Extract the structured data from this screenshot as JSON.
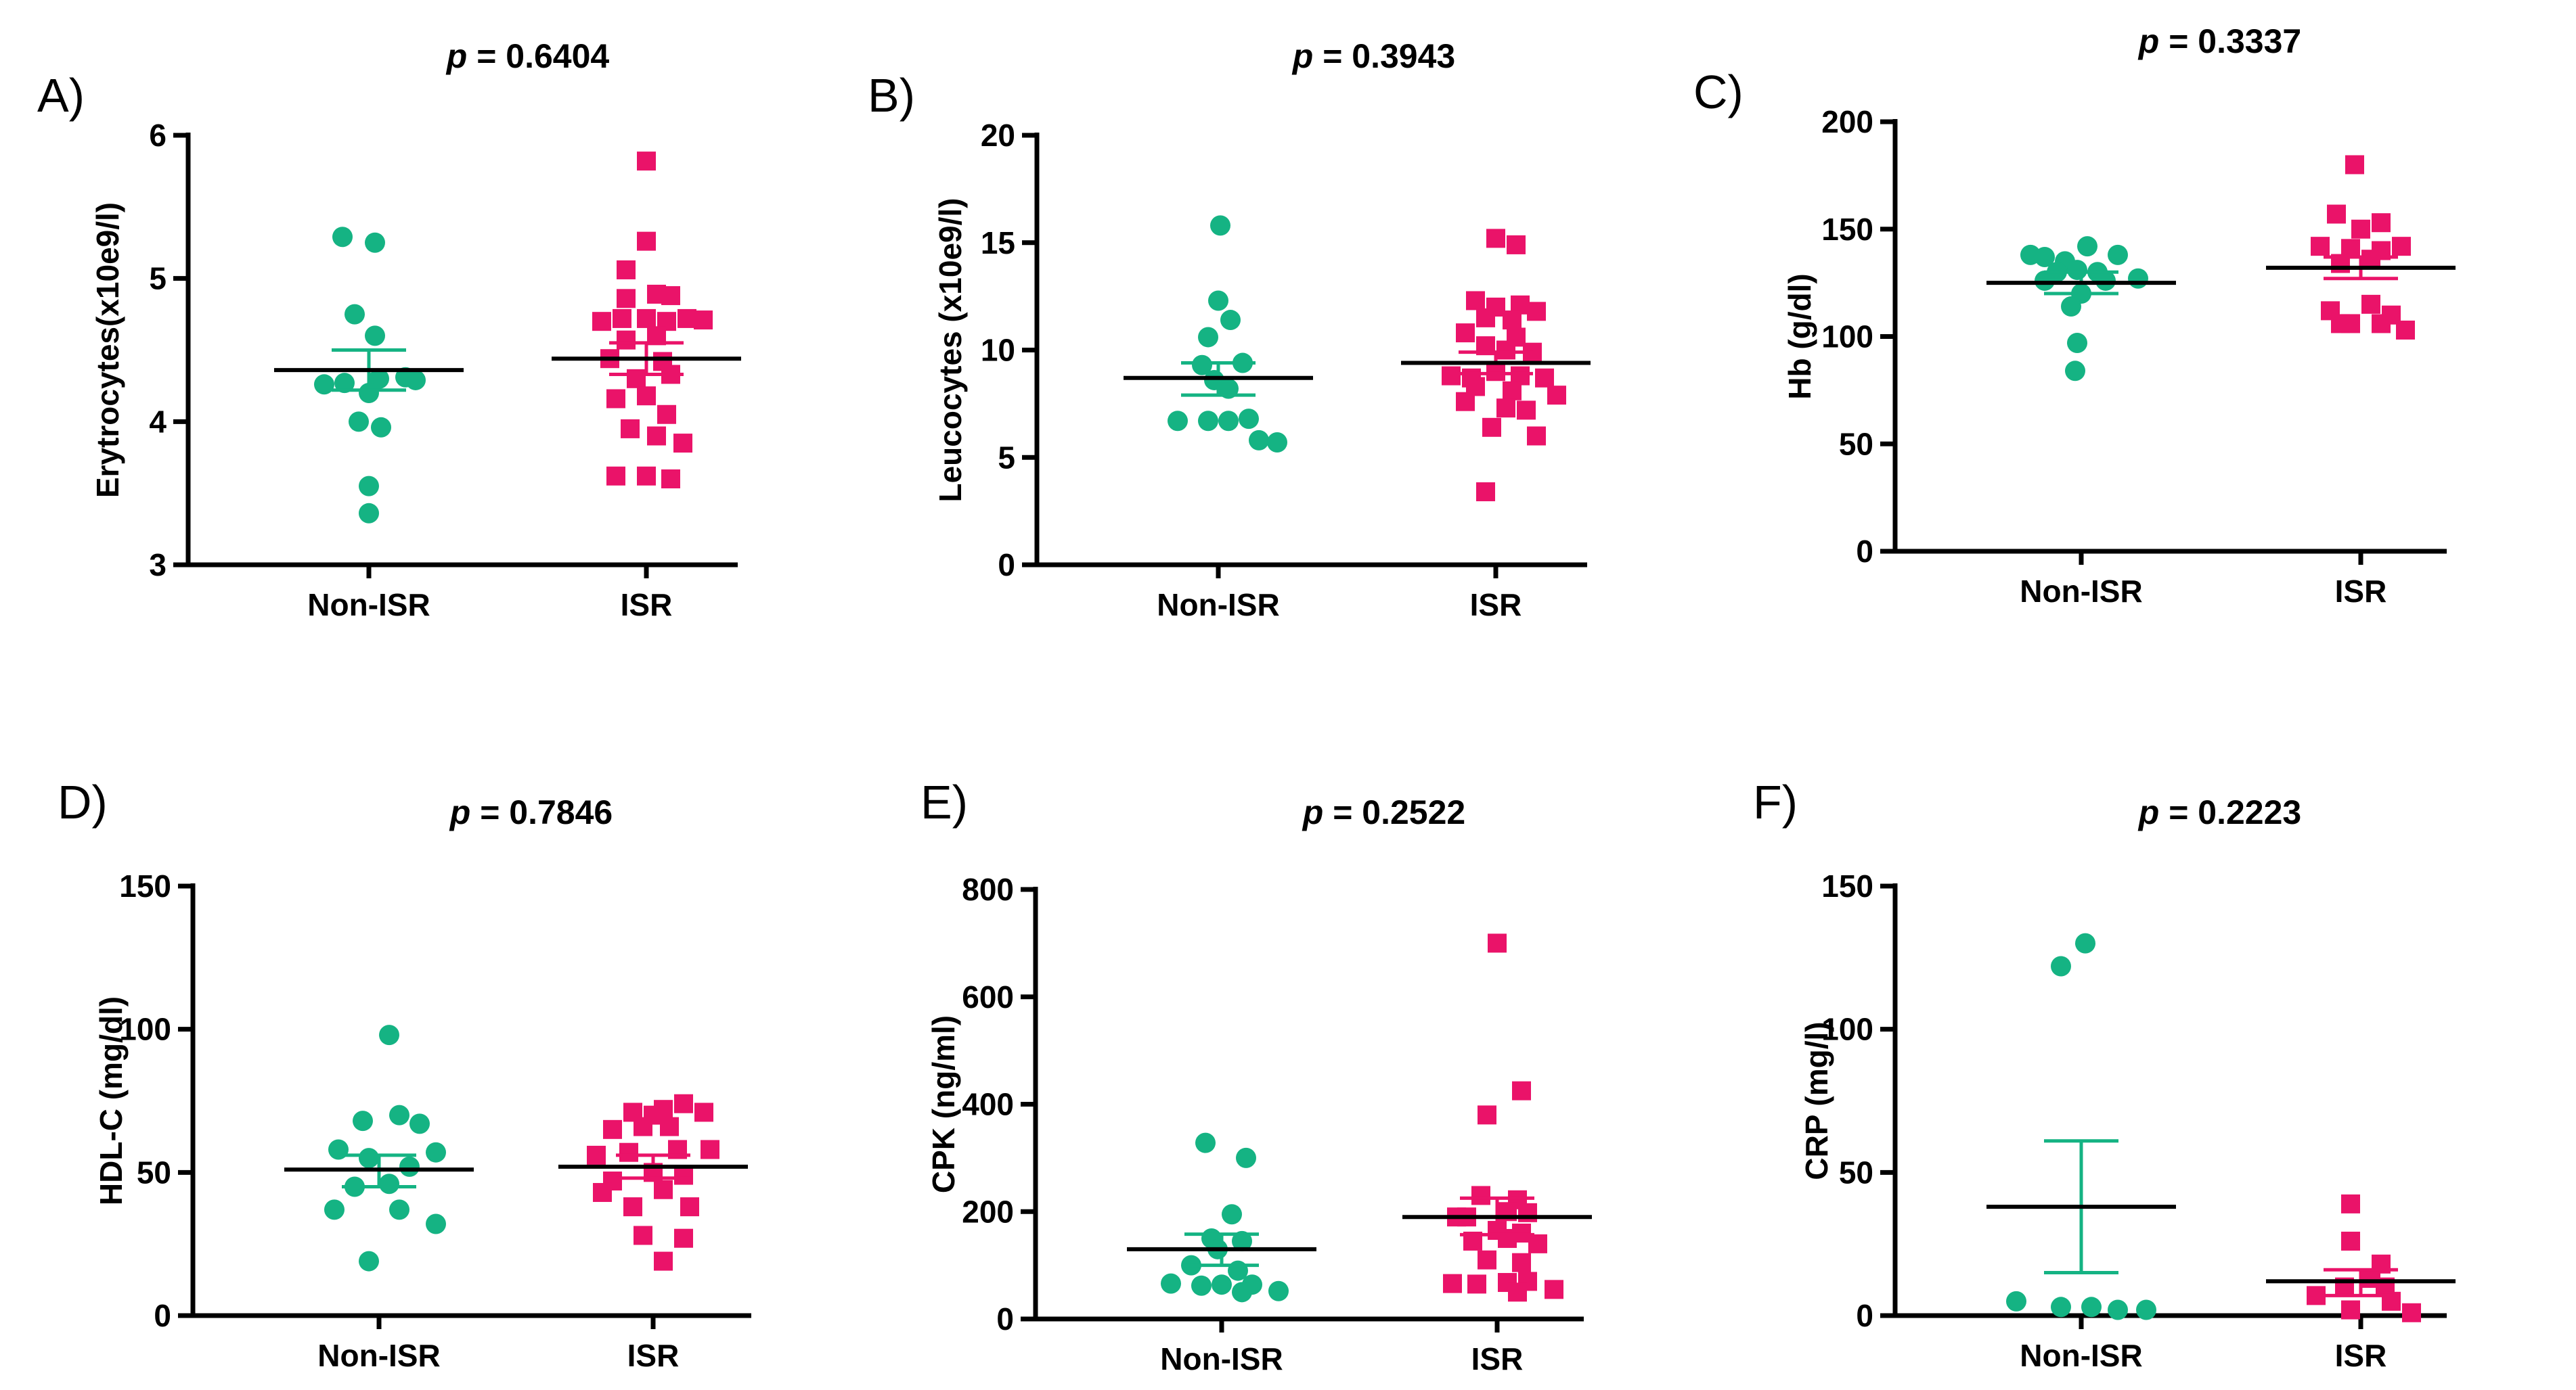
{
  "colors": {
    "non_isr": "#15b383",
    "isr": "#ea1369",
    "axis": "#000000"
  },
  "chart_data": [
    {
      "panel": "A)",
      "type": "scatter",
      "p_label": "p",
      "p_text": " = 0.6404",
      "ylabel": "Erytrocytes(x10e9/l)",
      "ylim": [
        3,
        6
      ],
      "yticks": [
        3,
        4,
        5,
        6
      ],
      "categories": [
        "Non-ISR",
        "ISR"
      ],
      "series": [
        {
          "name": "Non-ISR",
          "marker": "circle",
          "mean": 4.36,
          "sem_low": 4.22,
          "sem_high": 4.5,
          "points": [
            [
              -0.13,
              5.29
            ],
            [
              0.03,
              5.25
            ],
            [
              -0.07,
              4.75
            ],
            [
              0.03,
              4.6
            ],
            [
              -0.22,
              4.26
            ],
            [
              -0.12,
              4.27
            ],
            [
              0.05,
              4.3
            ],
            [
              0.18,
              4.31
            ],
            [
              0.23,
              4.29
            ],
            [
              0,
              4.2
            ],
            [
              -0.05,
              4.0
            ],
            [
              0.06,
              3.96
            ],
            [
              0.0,
              3.55
            ],
            [
              0.0,
              3.36
            ]
          ]
        },
        {
          "name": "ISR",
          "marker": "square",
          "mean": 4.44,
          "sem_low": 4.33,
          "sem_high": 4.55,
          "points": [
            [
              0,
              5.82
            ],
            [
              0,
              5.26
            ],
            [
              -0.1,
              5.06
            ],
            [
              -0.1,
              4.86
            ],
            [
              0.05,
              4.89
            ],
            [
              0.12,
              4.88
            ],
            [
              -0.22,
              4.7
            ],
            [
              -0.12,
              4.72
            ],
            [
              0.0,
              4.72
            ],
            [
              0.1,
              4.7
            ],
            [
              0.2,
              4.72
            ],
            [
              0.28,
              4.71
            ],
            [
              -0.1,
              4.57
            ],
            [
              0.05,
              4.6
            ],
            [
              -0.18,
              4.44
            ],
            [
              0.08,
              4.42
            ],
            [
              -0.05,
              4.3
            ],
            [
              0.12,
              4.33
            ],
            [
              -0.15,
              4.16
            ],
            [
              0.0,
              4.18
            ],
            [
              0.1,
              4.05
            ],
            [
              -0.08,
              3.95
            ],
            [
              0.05,
              3.9
            ],
            [
              0.18,
              3.85
            ],
            [
              -0.15,
              3.62
            ],
            [
              0.0,
              3.62
            ],
            [
              0.12,
              3.6
            ]
          ]
        }
      ]
    },
    {
      "panel": "B)",
      "type": "scatter",
      "p_label": "p",
      "p_text": " = 0.3943",
      "ylabel": "Leucocytes (x10e9/l)",
      "ylim": [
        0,
        20
      ],
      "yticks": [
        0,
        5,
        10,
        15,
        20
      ],
      "categories": [
        "Non-ISR",
        "ISR"
      ],
      "series": [
        {
          "name": "Non-ISR",
          "marker": "circle",
          "mean": 8.7,
          "sem_low": 7.9,
          "sem_high": 9.4,
          "points": [
            [
              0.01,
              15.8
            ],
            [
              0.0,
              12.3
            ],
            [
              0.06,
              11.4
            ],
            [
              -0.05,
              10.6
            ],
            [
              0.12,
              9.4
            ],
            [
              -0.08,
              9.3
            ],
            [
              -0.02,
              8.6
            ],
            [
              0.05,
              8.2
            ],
            [
              -0.2,
              6.7
            ],
            [
              -0.05,
              6.7
            ],
            [
              0.05,
              6.7
            ],
            [
              0.15,
              6.8
            ],
            [
              0.2,
              5.8
            ],
            [
              0.29,
              5.7
            ]
          ]
        },
        {
          "name": "ISR",
          "marker": "square",
          "mean": 9.4,
          "sem_low": 8.9,
          "sem_high": 9.9,
          "points": [
            [
              0.0,
              15.2
            ],
            [
              0.1,
              14.9
            ],
            [
              -0.1,
              12.3
            ],
            [
              0.0,
              12.0
            ],
            [
              0.12,
              12.1
            ],
            [
              0.2,
              11.8
            ],
            [
              -0.05,
              11.5
            ],
            [
              0.08,
              11.4
            ],
            [
              -0.15,
              10.8
            ],
            [
              0.1,
              10.6
            ],
            [
              -0.05,
              10.2
            ],
            [
              0.05,
              10.0
            ],
            [
              0.18,
              9.9
            ],
            [
              -0.22,
              8.8
            ],
            [
              -0.12,
              8.7
            ],
            [
              0.0,
              9.0
            ],
            [
              0.12,
              8.8
            ],
            [
              0.24,
              8.7
            ],
            [
              -0.1,
              8.3
            ],
            [
              0.08,
              8.1
            ],
            [
              0.3,
              7.9
            ],
            [
              -0.15,
              7.6
            ],
            [
              0.05,
              7.3
            ],
            [
              0.15,
              7.2
            ],
            [
              0.2,
              6.0
            ],
            [
              -0.02,
              6.4
            ],
            [
              -0.05,
              3.4
            ]
          ]
        }
      ]
    },
    {
      "panel": "C)",
      "type": "scatter",
      "p_label": "p",
      "p_text": " = 0.3337",
      "ylabel": "Hb (g/dl)",
      "ylim": [
        0,
        200
      ],
      "yticks": [
        0,
        50,
        100,
        150,
        200
      ],
      "categories": [
        "Non-ISR",
        "ISR"
      ],
      "series": [
        {
          "name": "Non-ISR",
          "marker": "circle",
          "mean": 125,
          "sem_low": 120,
          "sem_high": 130,
          "points": [
            [
              -0.25,
              138
            ],
            [
              -0.18,
              137
            ],
            [
              -0.08,
              135
            ],
            [
              0.03,
              142
            ],
            [
              0.18,
              138
            ],
            [
              0.28,
              127
            ],
            [
              -0.12,
              130
            ],
            [
              -0.02,
              131
            ],
            [
              0.08,
              130
            ],
            [
              -0.18,
              126
            ],
            [
              0.12,
              126
            ],
            [
              0.0,
              120
            ],
            [
              -0.05,
              114
            ],
            [
              -0.02,
              97
            ],
            [
              -0.03,
              84
            ]
          ]
        },
        {
          "name": "ISR",
          "marker": "square",
          "mean": 132,
          "sem_low": 127,
          "sem_high": 137,
          "points": [
            [
              -0.03,
              180
            ],
            [
              -0.12,
              157
            ],
            [
              0.0,
              150
            ],
            [
              0.1,
              153
            ],
            [
              -0.2,
              142
            ],
            [
              -0.05,
              141
            ],
            [
              0.1,
              140
            ],
            [
              0.2,
              142
            ],
            [
              -0.1,
              134
            ],
            [
              0.05,
              136
            ],
            [
              -0.15,
              112
            ],
            [
              0.05,
              115
            ],
            [
              0.15,
              110
            ],
            [
              -0.05,
              106
            ],
            [
              0.1,
              106
            ],
            [
              0.22,
              103
            ],
            [
              -0.1,
              106
            ]
          ]
        }
      ]
    },
    {
      "panel": "D)",
      "type": "scatter",
      "p_label": "p",
      "p_text": " = 0.7846",
      "ylabel": "HDL-C (mg/dl)",
      "ylim": [
        0,
        150
      ],
      "yticks": [
        0,
        50,
        100,
        150
      ],
      "categories": [
        "Non-ISR",
        "ISR"
      ],
      "series": [
        {
          "name": "Non-ISR",
          "marker": "circle",
          "mean": 51,
          "sem_low": 45,
          "sem_high": 56,
          "points": [
            [
              0.05,
              98
            ],
            [
              0.1,
              70
            ],
            [
              -0.08,
              68
            ],
            [
              0.2,
              67
            ],
            [
              -0.2,
              58
            ],
            [
              0.28,
              57
            ],
            [
              -0.05,
              55
            ],
            [
              0.15,
              52
            ],
            [
              -0.12,
              45
            ],
            [
              0.05,
              46
            ],
            [
              -0.22,
              37
            ],
            [
              0.1,
              37
            ],
            [
              0.28,
              32
            ],
            [
              -0.05,
              19
            ]
          ]
        },
        {
          "name": "ISR",
          "marker": "square",
          "mean": 52,
          "sem_low": 48,
          "sem_high": 56,
          "points": [
            [
              0.15,
              74
            ],
            [
              -0.1,
              71
            ],
            [
              0.0,
              70
            ],
            [
              0.05,
              72
            ],
            [
              0.25,
              71
            ],
            [
              -0.2,
              65
            ],
            [
              -0.05,
              66
            ],
            [
              0.08,
              66
            ],
            [
              -0.28,
              56
            ],
            [
              -0.12,
              57
            ],
            [
              0.12,
              58
            ],
            [
              0.28,
              58
            ],
            [
              -0.2,
              47
            ],
            [
              0.0,
              50
            ],
            [
              0.15,
              49
            ],
            [
              -0.25,
              43
            ],
            [
              0.05,
              44
            ],
            [
              -0.1,
              38
            ],
            [
              0.18,
              38
            ],
            [
              -0.05,
              28
            ],
            [
              0.15,
              27
            ],
            [
              0.05,
              19
            ]
          ]
        }
      ]
    },
    {
      "panel": "E)",
      "type": "scatter",
      "p_label": "p",
      "p_text": " = 0.2522",
      "ylabel": "CPK (ng/ml)",
      "ylim": [
        0,
        800
      ],
      "yticks": [
        0,
        200,
        400,
        600,
        800
      ],
      "categories": [
        "Non-ISR",
        "ISR"
      ],
      "series": [
        {
          "name": "Non-ISR",
          "marker": "circle",
          "mean": 130,
          "sem_low": 100,
          "sem_high": 158,
          "points": [
            [
              -0.08,
              328
            ],
            [
              0.12,
              300
            ],
            [
              0.05,
              195
            ],
            [
              -0.05,
              150
            ],
            [
              0.1,
              145
            ],
            [
              -0.02,
              130
            ],
            [
              -0.15,
              100
            ],
            [
              0.08,
              90
            ],
            [
              -0.25,
              66
            ],
            [
              -0.1,
              62
            ],
            [
              0.0,
              64
            ],
            [
              0.15,
              64
            ],
            [
              0.1,
              50
            ],
            [
              0.28,
              52
            ]
          ]
        },
        {
          "name": "ISR",
          "marker": "square",
          "mean": 190,
          "sem_low": 157,
          "sem_high": 225,
          "points": [
            [
              0.0,
              700
            ],
            [
              0.12,
              425
            ],
            [
              -0.05,
              380
            ],
            [
              -0.08,
              230
            ],
            [
              0.1,
              222
            ],
            [
              -0.15,
              190
            ],
            [
              0.05,
              200
            ],
            [
              0.15,
              198
            ],
            [
              -0.2,
              190
            ],
            [
              0.0,
              165
            ],
            [
              0.12,
              160
            ],
            [
              -0.12,
              145
            ],
            [
              0.05,
              150
            ],
            [
              0.2,
              140
            ],
            [
              -0.05,
              110
            ],
            [
              0.12,
              105
            ],
            [
              -0.22,
              66
            ],
            [
              -0.1,
              65
            ],
            [
              0.05,
              68
            ],
            [
              0.15,
              70
            ],
            [
              0.28,
              55
            ],
            [
              0.1,
              50
            ]
          ]
        }
      ]
    },
    {
      "panel": "F)",
      "type": "scatter",
      "p_label": "p",
      "p_text": " = 0.2223",
      "ylabel": "CRP (mg/l)",
      "ylim": [
        0,
        150
      ],
      "yticks": [
        0,
        50,
        100,
        150
      ],
      "categories": [
        "Non-ISR",
        "ISR"
      ],
      "series": [
        {
          "name": "Non-ISR",
          "marker": "circle",
          "mean": 38,
          "sem_low": 15,
          "sem_high": 61,
          "points": [
            [
              -0.1,
              122
            ],
            [
              0.02,
              130
            ],
            [
              -0.32,
              5
            ],
            [
              -0.1,
              3
            ],
            [
              0.05,
              3
            ],
            [
              0.18,
              2
            ],
            [
              0.32,
              2
            ]
          ]
        },
        {
          "name": "ISR",
          "marker": "square",
          "mean": 12,
          "sem_low": 7,
          "sem_high": 16,
          "points": [
            [
              -0.05,
              39
            ],
            [
              -0.05,
              26
            ],
            [
              0.1,
              18
            ],
            [
              0.05,
              13
            ],
            [
              -0.08,
              10
            ],
            [
              0.12,
              10
            ],
            [
              -0.22,
              7
            ],
            [
              0.15,
              5
            ],
            [
              -0.05,
              2
            ],
            [
              0.25,
              1
            ]
          ]
        }
      ]
    }
  ]
}
